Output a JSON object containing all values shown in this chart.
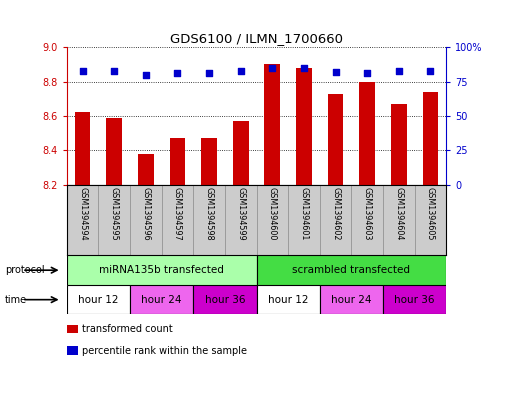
{
  "title": "GDS6100 / ILMN_1700660",
  "samples": [
    "GSM1394594",
    "GSM1394595",
    "GSM1394596",
    "GSM1394597",
    "GSM1394598",
    "GSM1394599",
    "GSM1394600",
    "GSM1394601",
    "GSM1394602",
    "GSM1394603",
    "GSM1394604",
    "GSM1394605"
  ],
  "bar_values": [
    8.62,
    8.59,
    8.38,
    8.47,
    8.47,
    8.57,
    8.9,
    8.88,
    8.73,
    8.8,
    8.67,
    8.74
  ],
  "dot_values": [
    83,
    83,
    80,
    81,
    81,
    83,
    85,
    85,
    82,
    81,
    83,
    83
  ],
  "bar_color": "#cc0000",
  "dot_color": "#0000cc",
  "ylim_left": [
    8.2,
    9.0
  ],
  "ylim_right": [
    0,
    100
  ],
  "yticks_left": [
    8.2,
    8.4,
    8.6,
    8.8,
    9.0
  ],
  "yticks_right": [
    0,
    25,
    50,
    75,
    100
  ],
  "ytick_labels_right": [
    "0",
    "25",
    "50",
    "75",
    "100%"
  ],
  "protocol_groups": [
    {
      "label": "miRNA135b transfected",
      "start": 0,
      "end": 6,
      "color": "#aaffaa"
    },
    {
      "label": "scrambled transfected",
      "start": 6,
      "end": 12,
      "color": "#44dd44"
    }
  ],
  "time_groups": [
    {
      "label": "hour 12",
      "start": 0,
      "end": 2,
      "color": "#ffffff"
    },
    {
      "label": "hour 24",
      "start": 2,
      "end": 4,
      "color": "#ee66ee"
    },
    {
      "label": "hour 36",
      "start": 4,
      "end": 6,
      "color": "#cc00cc"
    },
    {
      "label": "hour 12",
      "start": 6,
      "end": 8,
      "color": "#ffffff"
    },
    {
      "label": "hour 24",
      "start": 8,
      "end": 10,
      "color": "#ee66ee"
    },
    {
      "label": "hour 36",
      "start": 10,
      "end": 12,
      "color": "#cc00cc"
    }
  ],
  "legend_items": [
    {
      "label": "transformed count",
      "color": "#cc0000"
    },
    {
      "label": "percentile rank within the sample",
      "color": "#0000cc"
    }
  ],
  "bar_base": 8.2,
  "sample_label_bg": "#cccccc",
  "sample_label_divider": "#888888"
}
